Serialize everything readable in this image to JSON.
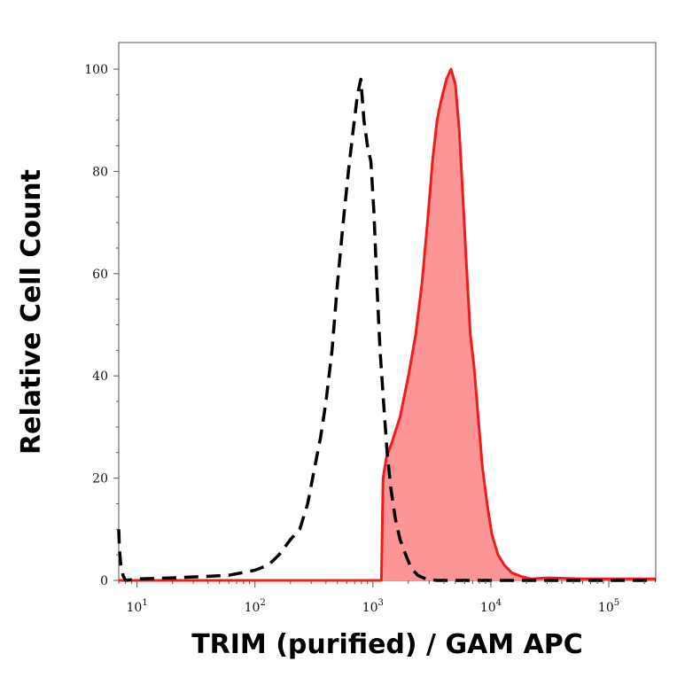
{
  "chart_data": {
    "type": "area",
    "xlabel": "TRIM (purified) / GAM APC",
    "ylabel": "Relative Cell Count",
    "x_scale": "log",
    "xlim": [
      7,
      250000
    ],
    "ylim": [
      0,
      105
    ],
    "x_ticks": [
      {
        "value": 10,
        "base": "10",
        "exp": "1"
      },
      {
        "value": 100,
        "base": "10",
        "exp": "2"
      },
      {
        "value": 1000,
        "base": "10",
        "exp": "3"
      },
      {
        "value": 10000,
        "base": "10",
        "exp": "4"
      },
      {
        "value": 100000,
        "base": "10",
        "exp": "5"
      }
    ],
    "y_ticks": [
      {
        "value": 0,
        "label": "0"
      },
      {
        "value": 20,
        "label": "20"
      },
      {
        "value": 40,
        "label": "40"
      },
      {
        "value": 60,
        "label": "60"
      },
      {
        "value": 80,
        "label": "80"
      },
      {
        "value": 100,
        "label": "100"
      }
    ],
    "grid": false,
    "series": [
      {
        "role": "isotype-control",
        "style": "dashed",
        "color": "#000000",
        "fill": "none",
        "x": [
          7,
          7.1,
          7.3,
          7.6,
          8,
          10,
          20,
          40,
          60,
          100,
          130,
          160,
          200,
          240,
          280,
          320,
          360,
          400,
          450,
          500,
          560,
          620,
          680,
          740,
          790,
          840,
          900,
          960,
          1020,
          1080,
          1150,
          1230,
          1320,
          1420,
          1550,
          1700,
          1900,
          2100,
          2400,
          2800,
          3500,
          5000,
          10000,
          50000,
          250000
        ],
        "y": [
          10,
          6,
          3,
          1,
          0,
          0.3,
          0.5,
          0.8,
          1,
          2,
          3,
          5,
          8,
          10,
          15,
          22,
          28,
          35,
          45,
          58,
          70,
          80,
          88,
          95,
          98,
          90,
          85,
          82,
          72,
          58,
          45,
          35,
          25,
          18,
          12,
          8,
          5,
          2.5,
          1,
          0.3,
          0,
          0,
          0,
          0,
          0
        ]
      },
      {
        "role": "stained",
        "style": "solid",
        "color": "#ee1c1c",
        "fill": "#fc9696",
        "x": [
          7,
          500,
          1000,
          1180,
          1220,
          1300,
          1450,
          1700,
          2000,
          2300,
          2600,
          2900,
          3200,
          3500,
          3800,
          4200,
          4600,
          5000,
          5400,
          5800,
          6200,
          6700,
          7200,
          7800,
          8500,
          9300,
          10200,
          11500,
          13000,
          15000,
          18000,
          22000,
          30000,
          60000,
          250000
        ],
        "y": [
          0,
          0,
          0,
          0,
          20,
          24,
          27,
          32,
          40,
          48,
          58,
          70,
          82,
          90,
          94,
          98,
          100,
          97,
          88,
          75,
          62,
          48,
          42,
          32,
          22,
          15,
          9,
          5,
          3,
          1.5,
          0.8,
          0.3,
          0.5,
          0.3,
          0.3
        ]
      }
    ]
  }
}
